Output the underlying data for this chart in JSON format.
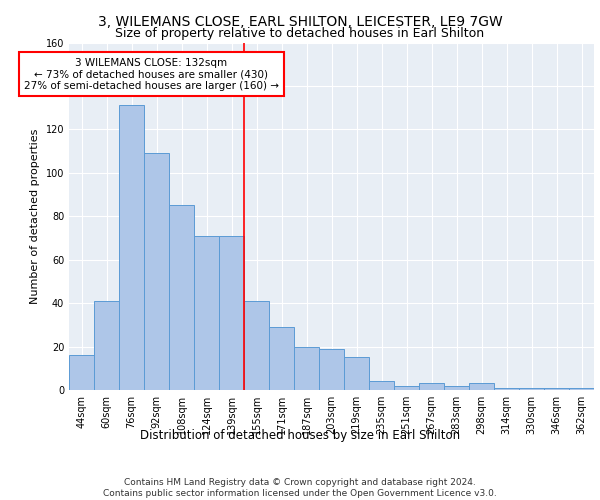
{
  "title": "3, WILEMANS CLOSE, EARL SHILTON, LEICESTER, LE9 7GW",
  "subtitle": "Size of property relative to detached houses in Earl Shilton",
  "xlabel": "Distribution of detached houses by size in Earl Shilton",
  "ylabel": "Number of detached properties",
  "categories": [
    "44sqm",
    "60sqm",
    "76sqm",
    "92sqm",
    "108sqm",
    "124sqm",
    "139sqm",
    "155sqm",
    "171sqm",
    "187sqm",
    "203sqm",
    "219sqm",
    "235sqm",
    "251sqm",
    "267sqm",
    "283sqm",
    "298sqm",
    "314sqm",
    "330sqm",
    "346sqm",
    "362sqm"
  ],
  "values": [
    16,
    41,
    131,
    109,
    85,
    71,
    71,
    41,
    29,
    20,
    19,
    15,
    4,
    2,
    3,
    2,
    3,
    1,
    1,
    1,
    1
  ],
  "bar_color": "#aec6e8",
  "bar_edge_color": "#5b9bd5",
  "vline_x": 6.5,
  "vline_color": "red",
  "annotation_text": "3 WILEMANS CLOSE: 132sqm\n← 73% of detached houses are smaller (430)\n27% of semi-detached houses are larger (160) →",
  "annotation_box_color": "white",
  "annotation_box_edge": "red",
  "ylim": [
    0,
    160
  ],
  "yticks": [
    0,
    20,
    40,
    60,
    80,
    100,
    120,
    140,
    160
  ],
  "footer": "Contains HM Land Registry data © Crown copyright and database right 2024.\nContains public sector information licensed under the Open Government Licence v3.0.",
  "bg_color": "#e8eef5",
  "title_fontsize": 10,
  "subtitle_fontsize": 9,
  "xlabel_fontsize": 8.5,
  "ylabel_fontsize": 8,
  "footer_fontsize": 6.5,
  "tick_fontsize": 7,
  "annotation_fontsize": 7.5
}
